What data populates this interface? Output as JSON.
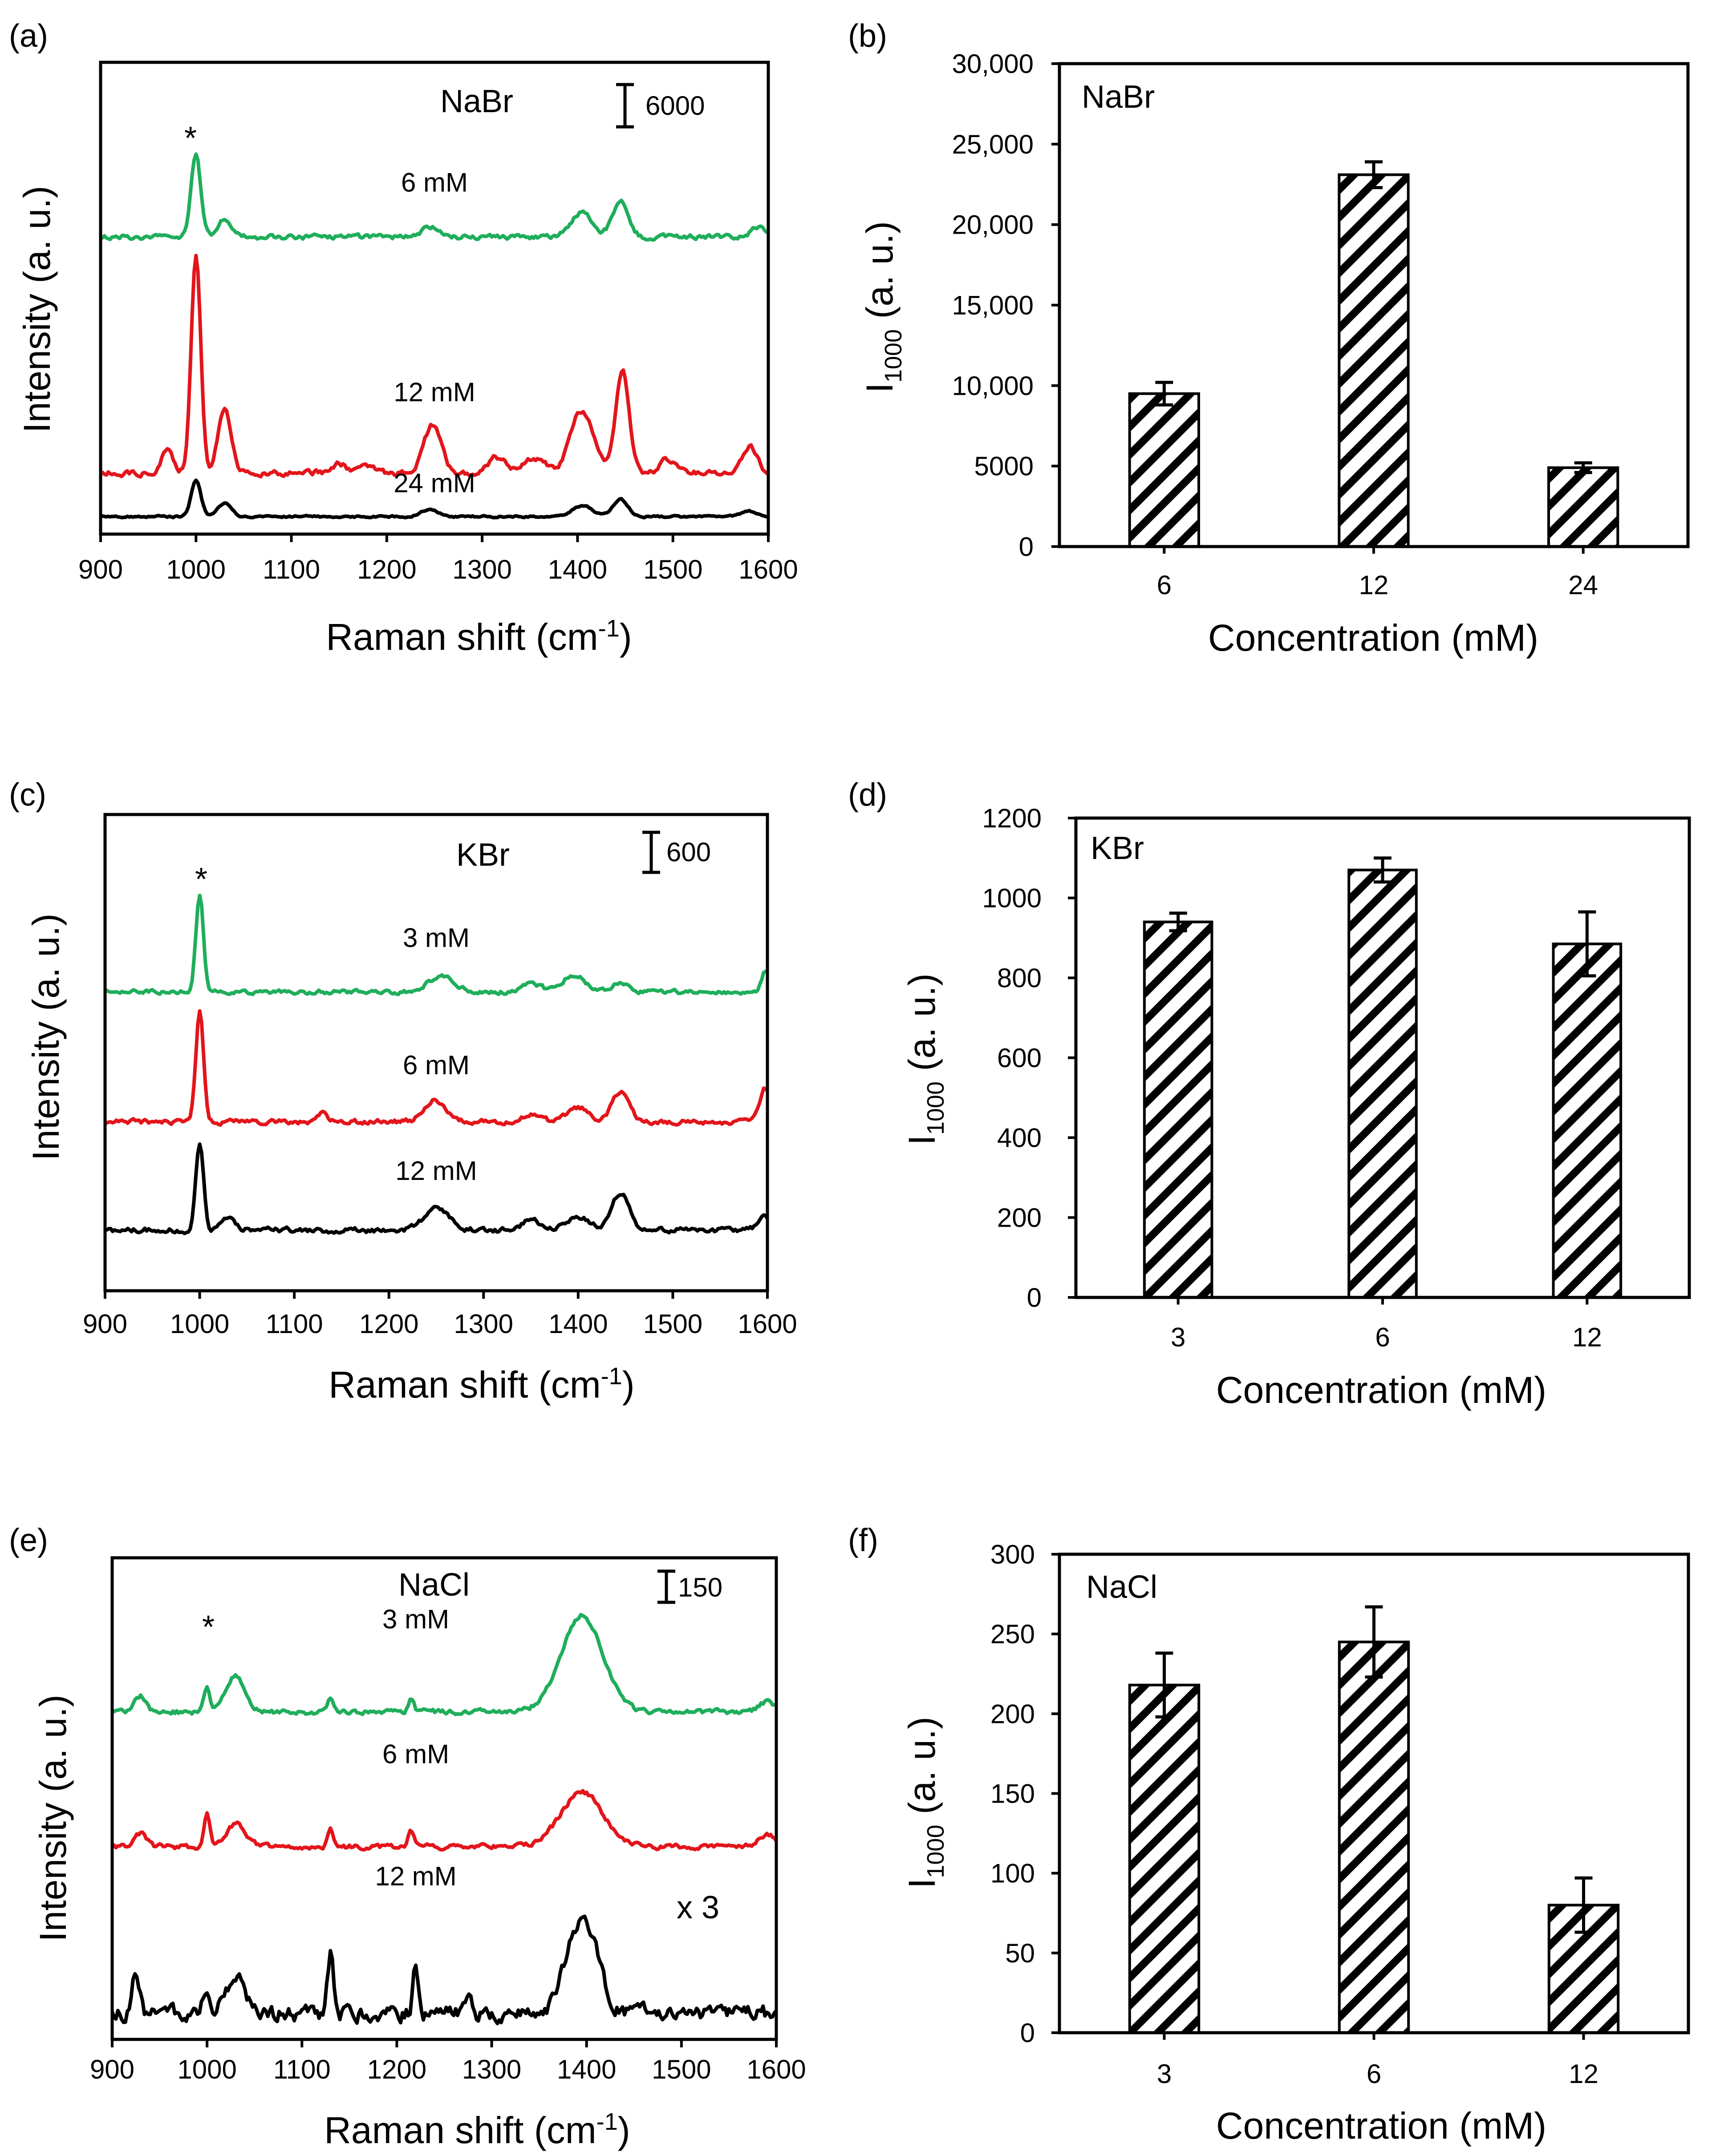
{
  "figure": {
    "background": "#ffffff",
    "series_colors": {
      "green": "#1fae5b",
      "red": "#e3151b",
      "black": "#000000"
    }
  },
  "chart_data": [
    {
      "id": "a",
      "panel_label": "(a)",
      "type": "line",
      "title": "NaBr",
      "xlabel": "Raman shift (cm",
      "xlabel_sup": "-1",
      "xlabel_end": ")",
      "ylabel": "Intensity (a. u.)",
      "xlim": [
        900,
        1600
      ],
      "xticks": [
        900,
        1000,
        1100,
        1200,
        1300,
        1400,
        1500,
        1600
      ],
      "ylim": [
        0,
        54000
      ],
      "peak_marker": "*",
      "peak_marker_x": 1000,
      "scale_bar": {
        "label": "6000",
        "value": 6000
      },
      "series": [
        {
          "name": "6 mM",
          "color": "#1fae5b",
          "baseline": 34000,
          "noise": 500,
          "label_x": 1250,
          "label_offset": 5200,
          "peaks": [
            [
              1000,
              9500,
              5
            ],
            [
              1030,
              2200,
              7
            ],
            [
              1245,
              1200,
              9
            ],
            [
              1405,
              2800,
              11
            ],
            [
              1445,
              4300,
              8
            ],
            [
              1590,
              1000,
              8
            ]
          ]
        },
        {
          "name": "12 mM",
          "color": "#e3151b",
          "baseline": 7000,
          "noise": 600,
          "label_x": 1250,
          "label_offset": 8200,
          "peaks": [
            [
              970,
              2500,
              6
            ],
            [
              1000,
              25000,
              5
            ],
            [
              1030,
              7000,
              7
            ],
            [
              1150,
              1000,
              8
            ],
            [
              1180,
              900,
              6
            ],
            [
              1248,
              5500,
              9
            ],
            [
              1315,
              1800,
              9
            ],
            [
              1355,
              1800,
              10
            ],
            [
              1405,
              7200,
              12
            ],
            [
              1447,
              12000,
              7
            ],
            [
              1495,
              1500,
              8
            ],
            [
              1580,
              3000,
              8
            ]
          ]
        },
        {
          "name": "24 mM",
          "color": "#000000",
          "baseline": 2000,
          "noise": 200,
          "label_x": 1250,
          "label_offset": 2800,
          "peaks": [
            [
              1000,
              4200,
              5
            ],
            [
              1030,
              1600,
              7
            ],
            [
              1245,
              800,
              9
            ],
            [
              1405,
              1300,
              11
            ],
            [
              1445,
              2000,
              8
            ],
            [
              1580,
              600,
              8
            ]
          ]
        }
      ]
    },
    {
      "id": "b",
      "panel_label": "(b)",
      "type": "bar",
      "title": "NaBr",
      "xlabel": "Concentration (mM)",
      "ylabel": "I",
      "ylabel_sub": "1000",
      "ylabel_end": " (a. u.)",
      "categories": [
        "6",
        "12",
        "24"
      ],
      "values": [
        9500,
        23100,
        4900
      ],
      "errors": [
        700,
        800,
        300
      ],
      "ylim": [
        0,
        30000
      ],
      "yticks": [
        0,
        5000,
        10000,
        15000,
        20000,
        25000,
        30000
      ],
      "ytick_labels": [
        "0",
        "5000",
        "10,000",
        "15,000",
        "20,000",
        "25,000",
        "30,000"
      ]
    },
    {
      "id": "c",
      "panel_label": "(c)",
      "type": "line",
      "title": "KBr",
      "xlabel": "Raman shift (cm",
      "xlabel_sup": "-1",
      "xlabel_end": ")",
      "ylabel": "Intensity (a. u.)",
      "xlim": [
        900,
        1600
      ],
      "xticks": [
        900,
        1000,
        1100,
        1200,
        1300,
        1400,
        1500,
        1600
      ],
      "ylim": [
        0,
        5500
      ],
      "peak_marker": "*",
      "peak_marker_x": 1000,
      "scale_bar": {
        "label": "600",
        "value": 600
      },
      "series": [
        {
          "name": "3 mM",
          "color": "#1fae5b",
          "baseline": 3450,
          "noise": 45,
          "label_x": 1250,
          "label_offset": 520,
          "peaks": [
            [
              1000,
              1130,
              4
            ],
            [
              1255,
              180,
              14
            ],
            [
              1350,
              90,
              10
            ],
            [
              1395,
              200,
              12
            ],
            [
              1445,
              120,
              8
            ],
            [
              1598,
              250,
              4
            ]
          ]
        },
        {
          "name": "6 mM",
          "color": "#e3151b",
          "baseline": 1950,
          "noise": 50,
          "label_x": 1250,
          "label_offset": 550,
          "peaks": [
            [
              1000,
              1300,
              4
            ],
            [
              1130,
              100,
              5
            ],
            [
              1248,
              250,
              11
            ],
            [
              1350,
              100,
              9
            ],
            [
              1400,
              170,
              11
            ],
            [
              1445,
              350,
              9
            ],
            [
              1598,
              400,
              6
            ]
          ]
        },
        {
          "name": "12 mM",
          "color": "#000000",
          "baseline": 700,
          "noise": 55,
          "label_x": 1250,
          "label_offset": 580,
          "peaks": [
            [
              1000,
              1000,
              4
            ],
            [
              1030,
              150,
              8
            ],
            [
              1250,
              250,
              13
            ],
            [
              1350,
              120,
              9
            ],
            [
              1400,
              150,
              11
            ],
            [
              1445,
              430,
              9
            ],
            [
              1595,
              150,
              6
            ]
          ]
        }
      ]
    },
    {
      "id": "d",
      "panel_label": "(d)",
      "type": "bar",
      "title": "KBr",
      "xlabel": "Concentration (mM)",
      "ylabel": "I",
      "ylabel_sub": "1000",
      "ylabel_end": " (a. u.)",
      "categories": [
        "3",
        "6",
        "12"
      ],
      "values": [
        940,
        1070,
        885
      ],
      "errors": [
        22,
        30,
        80
      ],
      "ylim": [
        0,
        1200
      ],
      "yticks": [
        0,
        200,
        400,
        600,
        800,
        1000,
        1200
      ],
      "ytick_labels": [
        "0",
        "200",
        "400",
        "600",
        "800",
        "1000",
        "1200"
      ]
    },
    {
      "id": "e",
      "panel_label": "(e)",
      "type": "line",
      "title": "NaCl",
      "xlabel": "Raman shift (cm",
      "xlabel_sup": "-1",
      "xlabel_end": ")",
      "ylabel": "Intensity (a. u.)",
      "xlim": [
        900,
        1600
      ],
      "xticks": [
        900,
        1000,
        1100,
        1200,
        1300,
        1400,
        1500,
        1600
      ],
      "ylim": [
        0,
        1500
      ],
      "peak_marker": "*",
      "peak_marker_x": 1000,
      "scale_bar": {
        "label": "150",
        "value": 150
      },
      "annotation": "x 3",
      "series": [
        {
          "name": "3 mM",
          "color": "#1fae5b",
          "baseline": 1020,
          "noise": 14,
          "label_x": 1220,
          "label_offset": 260,
          "peaks": [
            [
              930,
              50,
              6
            ],
            [
              1000,
              80,
              3
            ],
            [
              1030,
              110,
              10
            ],
            [
              1130,
              40,
              3
            ],
            [
              1215,
              40,
              3
            ],
            [
              1395,
              300,
              22
            ],
            [
              1590,
              30,
              8
            ]
          ]
        },
        {
          "name": "6 mM",
          "color": "#e3151b",
          "baseline": 600,
          "noise": 14,
          "label_x": 1220,
          "label_offset": 260,
          "peaks": [
            [
              930,
              40,
              6
            ],
            [
              1000,
              110,
              3
            ],
            [
              1030,
              70,
              10
            ],
            [
              1130,
              55,
              3
            ],
            [
              1215,
              55,
              3
            ],
            [
              1395,
              170,
              22
            ],
            [
              1590,
              40,
              8
            ]
          ]
        },
        {
          "name": "12 mM",
          "color": "#000000",
          "baseline": 80,
          "noise": 45,
          "label_x": 1220,
          "label_offset": 400,
          "peaks": [
            [
              925,
              120,
              4
            ],
            [
              1000,
              80,
              4
            ],
            [
              1030,
              120,
              10
            ],
            [
              1130,
              180,
              3
            ],
            [
              1220,
              160,
              3
            ],
            [
              1275,
              60,
              3
            ],
            [
              1395,
              300,
              16
            ]
          ]
        }
      ]
    },
    {
      "id": "f",
      "panel_label": "(f)",
      "type": "bar",
      "title": "NaCl",
      "xlabel": "Concentration (mM)",
      "ylabel": "I",
      "ylabel_sub": "1000",
      "ylabel_end": " (a. u.)",
      "categories": [
        "3",
        "6",
        "12"
      ],
      "values": [
        218,
        245,
        80
      ],
      "errors": [
        20,
        22,
        17
      ],
      "ylim": [
        0,
        300
      ],
      "yticks": [
        0,
        50,
        100,
        150,
        200,
        250,
        300
      ],
      "ytick_labels": [
        "0",
        "50",
        "100",
        "150",
        "200",
        "250",
        "300"
      ]
    }
  ]
}
